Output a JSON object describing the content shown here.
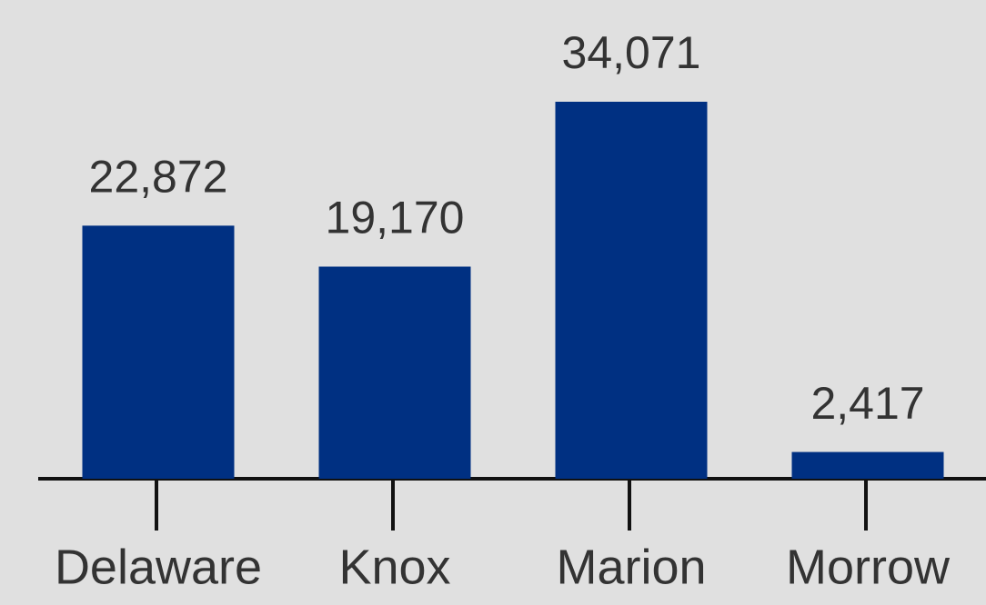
{
  "chart_data": {
    "type": "bar",
    "categories": [
      "Delaware",
      "Knox",
      "Marion",
      "Morrow"
    ],
    "values": [
      22872,
      19170,
      34071,
      2417
    ],
    "value_labels": [
      "22,872",
      "19,170",
      "34,071",
      "2,417"
    ],
    "color": "#003082"
  }
}
